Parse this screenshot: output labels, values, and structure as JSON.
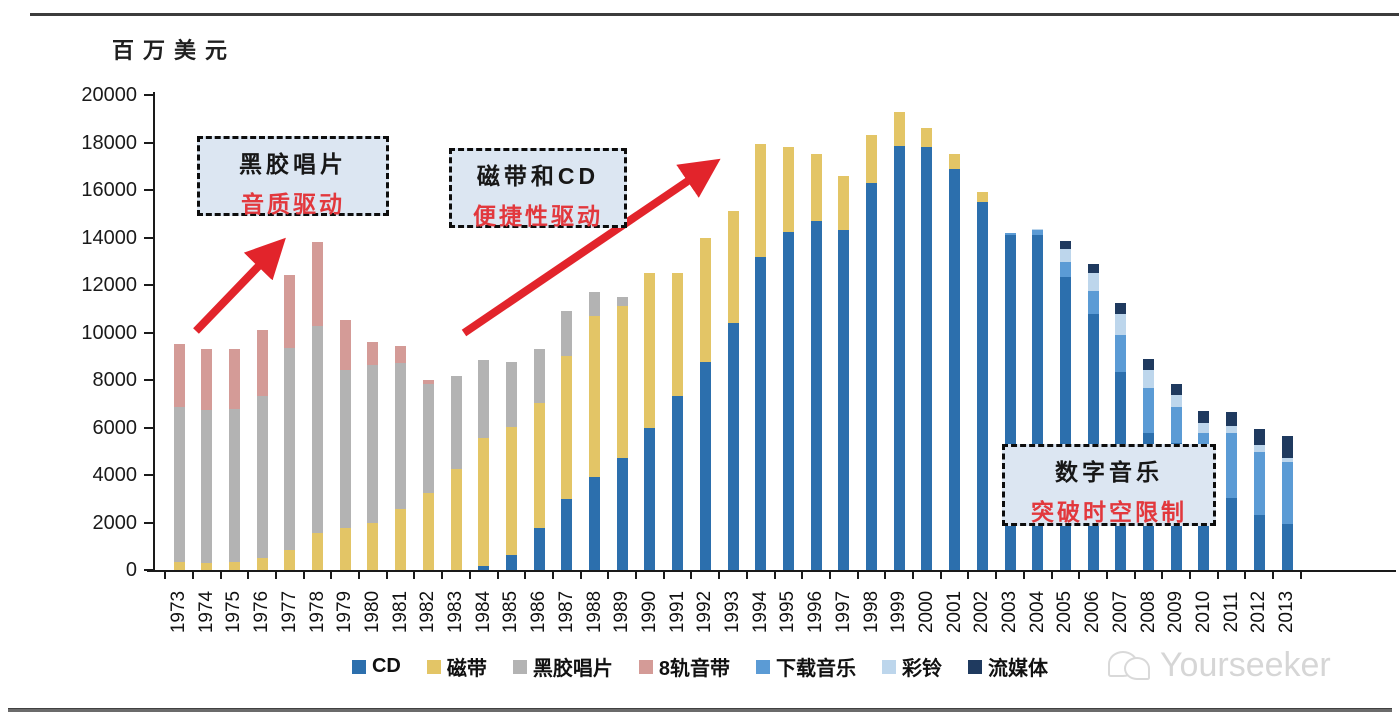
{
  "unit_label": "百万美元",
  "watermark": {
    "text": "Yourseeker",
    "icon": "wechat-icon"
  },
  "annotations": [
    {
      "id": "vinyl-era",
      "title": "黑胶唱片",
      "subtitle": "音质驱动"
    },
    {
      "id": "tape-cd-era",
      "title": "磁带和CD",
      "subtitle": "便捷性驱动"
    },
    {
      "id": "digital-era",
      "title": "数字音乐",
      "subtitle": "突破时空限制"
    }
  ],
  "colors": {
    "arrow_red": "#e2242b",
    "annotation_bg": "#dce6f2",
    "annotation_red_text": "#e2383d",
    "axis": "#1a1a1a"
  },
  "chart_data": {
    "type": "bar",
    "stacked": true,
    "unit_label": "百万美元",
    "ylim": [
      0,
      20000
    ],
    "y_ticks": [
      0,
      2000,
      4000,
      6000,
      8000,
      10000,
      12000,
      14000,
      16000,
      18000,
      20000
    ],
    "grid": false,
    "legend_position": "bottom",
    "categories": [
      1973,
      1974,
      1975,
      1976,
      1977,
      1978,
      1979,
      1980,
      1981,
      1982,
      1983,
      1984,
      1985,
      1986,
      1987,
      1988,
      1989,
      1990,
      1991,
      1992,
      1993,
      1994,
      1995,
      1996,
      1997,
      1998,
      1999,
      2000,
      2001,
      2002,
      2003,
      2004,
      2005,
      2006,
      2007,
      2008,
      2009,
      2010,
      2011,
      2012,
      2013
    ],
    "series": [
      {
        "name": "CD",
        "color": "#2c6fad",
        "values": [
          0,
          0,
          0,
          0,
          0,
          0,
          0,
          0,
          0,
          0,
          0,
          150,
          650,
          1750,
          3000,
          3900,
          4700,
          6000,
          7340,
          8750,
          10400,
          13200,
          14250,
          14700,
          14300,
          16300,
          17850,
          17800,
          16900,
          15500,
          14100,
          14100,
          12350,
          10800,
          8350,
          5750,
          5350,
          4200,
          3050,
          2300,
          1950
        ]
      },
      {
        "name": "磁带",
        "color": "#e3c566",
        "values": [
          350,
          280,
          350,
          490,
          840,
          1570,
          1760,
          1990,
          2560,
          3230,
          4240,
          5390,
          5360,
          5270,
          6010,
          6790,
          6420,
          6500,
          5160,
          5250,
          4700,
          4750,
          3550,
          2800,
          2300,
          2000,
          1450,
          800,
          600,
          400,
          0,
          0,
          0,
          0,
          0,
          0,
          0,
          0,
          0,
          0,
          0
        ]
      },
      {
        "name": "黑胶唱片",
        "color": "#b3b3b3",
        "values": [
          6530,
          6460,
          6430,
          6850,
          8490,
          8720,
          6660,
          6640,
          6140,
          4590,
          3910,
          3310,
          2740,
          2280,
          1890,
          1010,
          380,
          0,
          0,
          0,
          0,
          0,
          0,
          0,
          0,
          0,
          0,
          0,
          0,
          0,
          0,
          0,
          0,
          0,
          0,
          0,
          0,
          0,
          0,
          0,
          0
        ]
      },
      {
        "name": "8轨音带",
        "color": "#d49b97",
        "values": [
          2620,
          2560,
          2510,
          2760,
          3090,
          3500,
          2110,
          970,
          730,
          180,
          0,
          0,
          0,
          0,
          0,
          0,
          0,
          0,
          0,
          0,
          0,
          0,
          0,
          0,
          0,
          0,
          0,
          0,
          0,
          0,
          0,
          0,
          0,
          0,
          0,
          0,
          0,
          0,
          0,
          0,
          0
        ]
      },
      {
        "name": "下载音乐",
        "color": "#5b9bd5",
        "values": [
          0,
          0,
          0,
          0,
          0,
          0,
          0,
          0,
          0,
          0,
          0,
          0,
          0,
          0,
          0,
          0,
          0,
          0,
          0,
          0,
          0,
          0,
          0,
          0,
          0,
          0,
          0,
          0,
          0,
          0,
          100,
          200,
          600,
          950,
          1550,
          1900,
          1500,
          1590,
          2700,
          2670,
          2600
        ]
      },
      {
        "name": "彩铃",
        "color": "#bdd6ec",
        "values": [
          0,
          0,
          0,
          0,
          0,
          0,
          0,
          0,
          0,
          0,
          0,
          0,
          0,
          0,
          0,
          0,
          0,
          0,
          0,
          0,
          0,
          0,
          0,
          0,
          0,
          0,
          0,
          0,
          0,
          0,
          0,
          50,
          550,
          750,
          900,
          760,
          500,
          420,
          330,
          280,
          150
        ]
      },
      {
        "name": "流媒体",
        "color": "#1f3a5f",
        "values": [
          0,
          0,
          0,
          0,
          0,
          0,
          0,
          0,
          0,
          0,
          0,
          0,
          0,
          0,
          0,
          0,
          0,
          0,
          0,
          0,
          0,
          0,
          0,
          0,
          0,
          0,
          0,
          0,
          0,
          0,
          0,
          0,
          350,
          400,
          450,
          490,
          500,
          490,
          570,
          700,
          950
        ]
      }
    ]
  }
}
